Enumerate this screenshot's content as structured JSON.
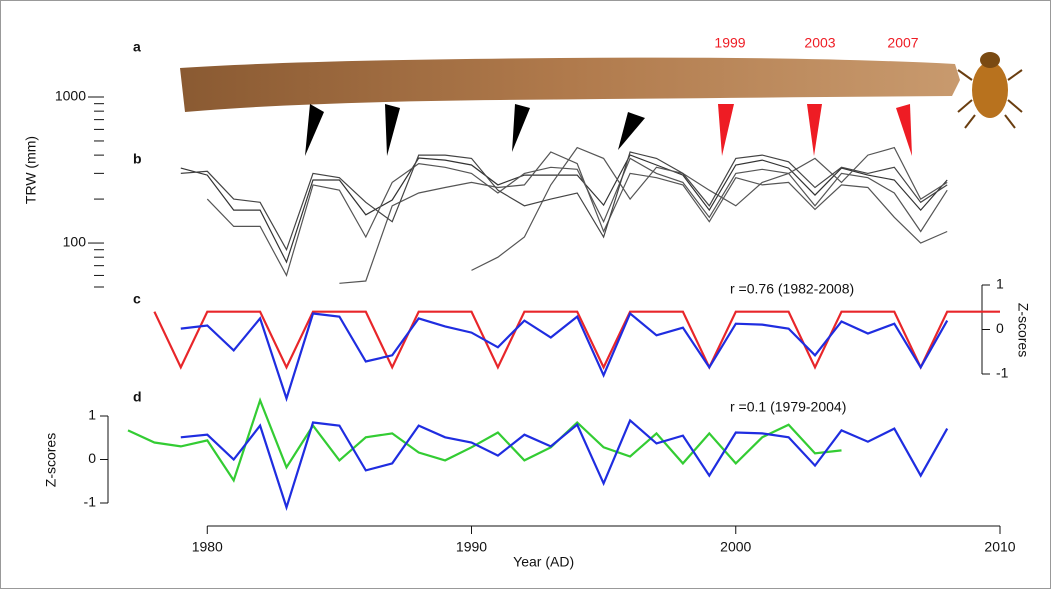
{
  "panel_a": {
    "label": "a",
    "year_labels": [
      "1999",
      "2003",
      "2007"
    ]
  },
  "chart_data": [
    {
      "type": "line",
      "label": "b",
      "ylabel": "TRW (mm)",
      "log_scale": true,
      "x": [
        1977,
        1978,
        1979,
        1980,
        1981,
        1982,
        1983,
        1984,
        1985,
        1986,
        1987,
        1988,
        1989,
        1990,
        1991,
        1992,
        1993,
        1994,
        1995,
        1996,
        1997,
        1998,
        1999,
        2000,
        2001,
        2002,
        2003,
        2004,
        2005,
        2006,
        2007,
        2008,
        2009,
        2010
      ],
      "ylim": [
        50,
        1000
      ],
      "yticks": [
        1000,
        100
      ],
      "yminorticks": [
        900,
        800,
        700,
        600,
        500,
        400,
        300,
        200,
        90,
        80,
        70,
        60,
        50
      ],
      "series": [
        {
          "color": "#333333",
          "values": [
            null,
            null,
            326,
            292,
            168,
            168,
            74,
            270,
            270,
            156,
            197,
            382,
            370,
            342,
            250,
            292,
            292,
            292,
            182,
            401,
            342,
            292,
            168,
            342,
            370,
            326,
            213,
            326,
            292,
            270,
            168,
            270,
            null,
            null
          ]
        },
        {
          "color": "#555555",
          "values": [
            null,
            null,
            null,
            200,
            130,
            130,
            60,
            250,
            230,
            110,
            260,
            350,
            330,
            300,
            220,
            300,
            330,
            320,
            140,
            380,
            300,
            260,
            150,
            300,
            320,
            300,
            180,
            300,
            280,
            220,
            120,
            230,
            null,
            null
          ]
        },
        {
          "color": "#555555",
          "values": [
            null,
            null,
            null,
            null,
            null,
            null,
            null,
            null,
            53,
            55,
            180,
            220,
            240,
            260,
            240,
            250,
            420,
            350,
            120,
            300,
            280,
            250,
            140,
            280,
            250,
            260,
            170,
            250,
            240,
            150,
            100,
            120,
            null,
            null
          ]
        },
        {
          "color": "#555555",
          "values": [
            null,
            null,
            null,
            null,
            null,
            null,
            null,
            null,
            null,
            null,
            null,
            null,
            null,
            65,
            80,
            110,
            250,
            450,
            380,
            200,
            330,
            300,
            230,
            180,
            260,
            300,
            380,
            260,
            400,
            450,
            200,
            260,
            null,
            null
          ]
        },
        {
          "color": "#444444",
          "values": [
            null,
            null,
            300,
            310,
            200,
            190,
            90,
            300,
            280,
            190,
            140,
            400,
            400,
            380,
            230,
            180,
            200,
            220,
            110,
            420,
            380,
            300,
            180,
            380,
            400,
            360,
            240,
            330,
            300,
            330,
            190,
            250,
            null,
            null
          ]
        }
      ]
    },
    {
      "type": "line",
      "label": "c",
      "ylabel": "Z-scores",
      "annotation": "r =0.76 (1982-2008)",
      "x": [
        1977,
        1978,
        1979,
        1980,
        1981,
        1982,
        1983,
        1984,
        1985,
        1986,
        1987,
        1988,
        1989,
        1990,
        1991,
        1992,
        1993,
        1994,
        1995,
        1996,
        1997,
        1998,
        1999,
        2000,
        2001,
        2002,
        2003,
        2004,
        2005,
        2006,
        2007,
        2008,
        2009,
        2010
      ],
      "ylim": [
        -1,
        1
      ],
      "yticks": [
        1,
        0,
        -1
      ],
      "series": [
        {
          "color": "#e8262a",
          "values": [
            null,
            0.4,
            -0.85,
            0.4,
            0.4,
            0.4,
            -0.85,
            0.4,
            0.4,
            0.4,
            -0.85,
            0.4,
            0.4,
            0.4,
            -0.85,
            0.4,
            0.4,
            0.4,
            -0.85,
            0.4,
            0.4,
            0.4,
            -0.85,
            0.4,
            0.4,
            0.4,
            -0.85,
            0.4,
            0.4,
            0.4,
            -0.85,
            0.4,
            0.4,
            0.4
          ]
        },
        {
          "color": "#1f2de0",
          "values": [
            null,
            null,
            0.02,
            0.09,
            -0.47,
            0.25,
            -1.55,
            0.36,
            0.29,
            -0.72,
            -0.58,
            0.25,
            0.07,
            -0.07,
            -0.4,
            0.2,
            -0.18,
            0.29,
            -1.03,
            0.36,
            -0.13,
            0.04,
            -0.85,
            0.13,
            0.11,
            0.02,
            -0.58,
            0.18,
            -0.09,
            0.13,
            -0.85,
            0.2,
            null,
            null
          ]
        }
      ]
    },
    {
      "type": "line",
      "label": "d",
      "ylabel": "Z-scores",
      "annotation": "r =0.1 (1979-2004)",
      "xlabel": "Year (AD)",
      "x": [
        1977,
        1978,
        1979,
        1980,
        1981,
        1982,
        1983,
        1984,
        1985,
        1986,
        1987,
        1988,
        1989,
        1990,
        1991,
        1992,
        1993,
        1994,
        1995,
        1996,
        1997,
        1998,
        1999,
        2000,
        2001,
        2002,
        2003,
        2004,
        2005,
        2006,
        2007,
        2008,
        2009,
        2010
      ],
      "xticks": [
        1980,
        1990,
        2000,
        2010
      ],
      "ylim": [
        -1,
        1
      ],
      "yticks": [
        1,
        0,
        -1
      ],
      "series": [
        {
          "color": "#33cc33",
          "values": [
            0.67,
            0.39,
            0.3,
            0.44,
            -0.48,
            1.36,
            -0.18,
            0.78,
            -0.02,
            0.51,
            0.6,
            0.16,
            -0.02,
            0.28,
            0.62,
            -0.02,
            0.28,
            0.85,
            0.28,
            0.07,
            0.6,
            -0.09,
            0.6,
            -0.09,
            0.51,
            0.8,
            0.14,
            0.21,
            null,
            null,
            null,
            null,
            null,
            null
          ]
        },
        {
          "color": "#1f2de0",
          "values": [
            null,
            null,
            0.51,
            0.57,
            0,
            0.78,
            -1.1,
            0.85,
            0.78,
            -0.25,
            -0.09,
            0.78,
            0.51,
            0.39,
            0.09,
            0.57,
            0.3,
            0.8,
            -0.55,
            0.9,
            0.37,
            0.55,
            -0.37,
            0.62,
            0.6,
            0.51,
            -0.14,
            0.67,
            0.41,
            0.71,
            -0.37,
            0.71,
            null,
            null
          ]
        }
      ]
    }
  ]
}
